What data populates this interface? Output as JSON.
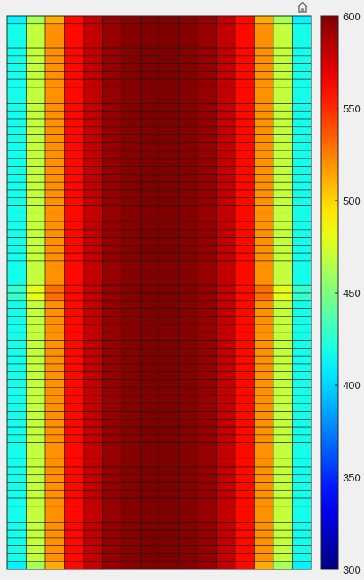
{
  "toolbar": {
    "home_icon": "home-icon"
  },
  "colormap": "jet",
  "chart_data": {
    "type": "heatmap",
    "title": "",
    "xlabel": "",
    "ylabel": "",
    "columns": 16,
    "rows": 70,
    "grid": true,
    "colorbar": {
      "placement": "right",
      "range": [
        300,
        600
      ],
      "ticks": [
        300,
        350,
        400,
        450,
        500,
        550,
        600
      ]
    },
    "column_profile": [
      418,
      470,
      520,
      560,
      580,
      593,
      598,
      600,
      600,
      598,
      593,
      580,
      560,
      520,
      470,
      418
    ],
    "edge_rows_value_offset": [
      {
        "row": 0,
        "delta": -8
      },
      {
        "row": 34,
        "delta": 10
      },
      {
        "row": 35,
        "delta": 10
      },
      {
        "row": 69,
        "delta": -8
      }
    ]
  }
}
